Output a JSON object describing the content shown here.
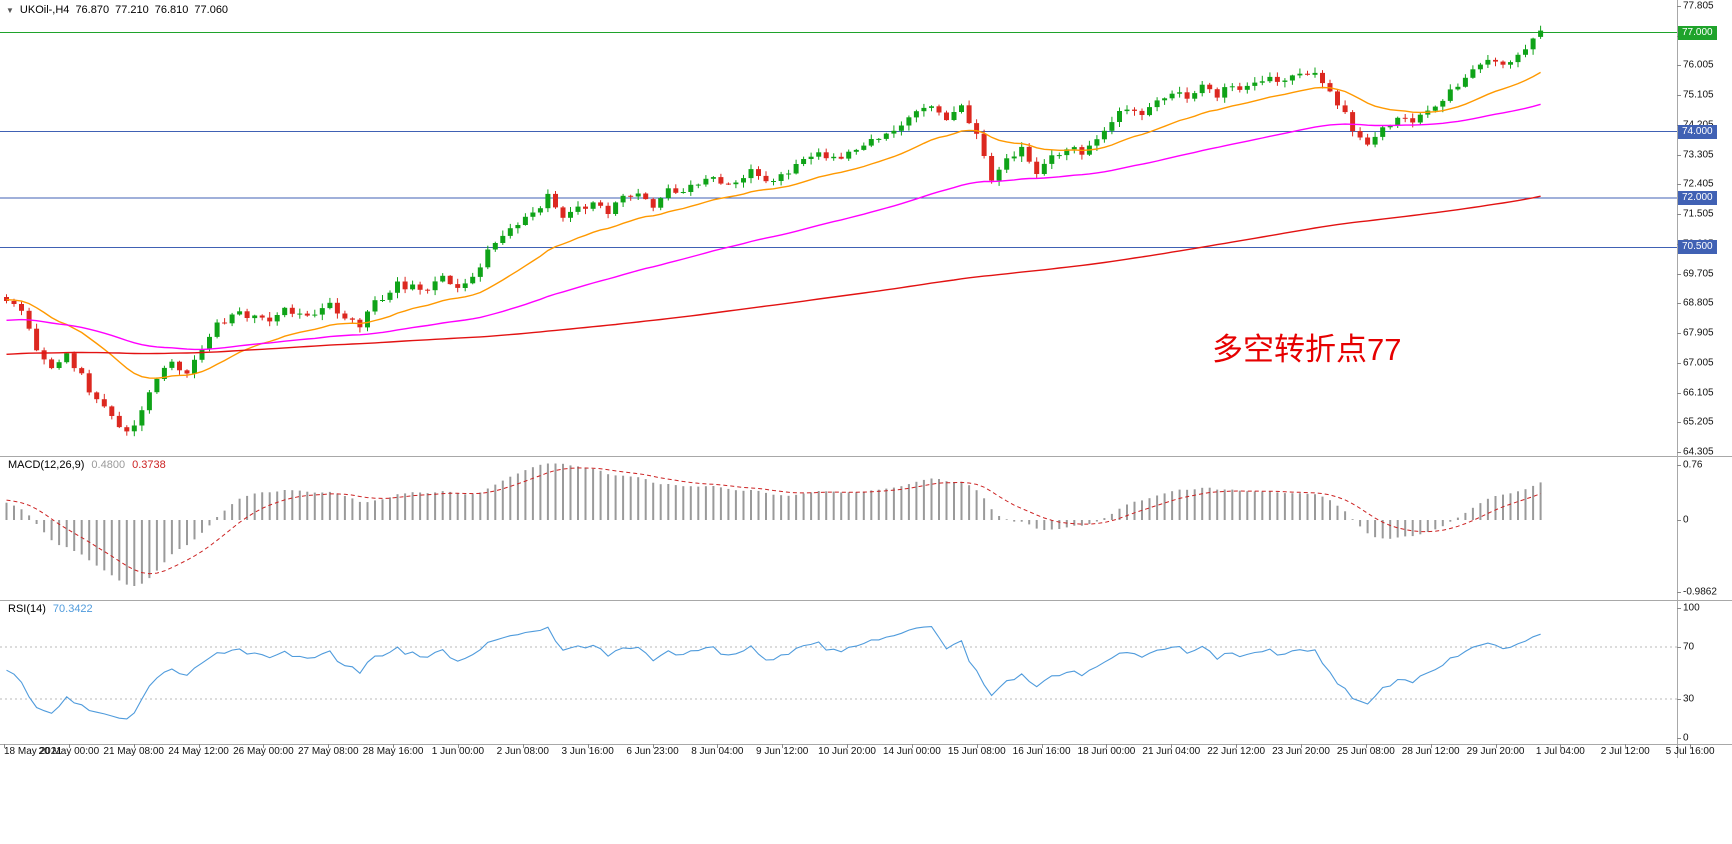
{
  "symbol_bar": {
    "marker_icon": "▼",
    "symbol": "UKOil-,H4",
    "open": "76.870",
    "high": "77.210",
    "low": "76.810",
    "close": "77.060"
  },
  "annotation": {
    "text": "多空转折点77",
    "color": "#e60000"
  },
  "time_axis": {
    "labels": [
      "18 May 2021",
      "20 May 00:00",
      "21 May 08:00",
      "24 May 12:00",
      "26 May 00:00",
      "27 May 08:00",
      "28 May 16:00",
      "1 Jun 00:00",
      "2 Jun 08:00",
      "3 Jun 16:00",
      "6 Jun 23:00",
      "8 Jun 04:00",
      "9 Jun 12:00",
      "10 Jun 20:00",
      "14 Jun 00:00",
      "15 Jun 08:00",
      "16 Jun 16:00",
      "18 Jun 00:00",
      "21 Jun 04:00",
      "22 Jun 12:00",
      "23 Jun 20:00",
      "25 Jun 08:00",
      "28 Jun 12:00",
      "29 Jun 20:00",
      "1 Jul 04:00",
      "2 Jul 12:00",
      "5 Jul 16:00"
    ]
  },
  "chart_data": [
    {
      "type": "candlestick",
      "symbol": "UKOil-",
      "timeframe": "H4",
      "bars_visible": 205,
      "last_bar": {
        "open": 76.87,
        "high": 77.21,
        "low": 76.81,
        "close": 77.06
      },
      "y_axis": {
        "min": 64.305,
        "max": 77.805,
        "tick_step": 0.9,
        "ticks": [
          "77.805",
          "76.905",
          "76.005",
          "75.105",
          "74.205",
          "73.305",
          "72.405",
          "71.505",
          "70.605",
          "69.705",
          "68.805",
          "67.905",
          "67.005",
          "66.105",
          "65.205",
          "64.305"
        ]
      },
      "horizontal_levels": [
        {
          "value": 77.0,
          "label": "77.000",
          "color": "#1fa32b",
          "tag_bg": "#1fa32b"
        },
        {
          "value": 74.0,
          "label": "74.000",
          "color": "#4061b4",
          "tag_bg": "#4061b4"
        },
        {
          "value": 72.0,
          "label": "72.000",
          "color": "#4061b4",
          "tag_bg": "#4061b4"
        },
        {
          "value": 70.5,
          "label": "70.500",
          "color": "#4061b4",
          "tag_bg": "#4061b4"
        }
      ],
      "up_color": "#0fa318",
      "down_color": "#dc2820",
      "moving_averages": [
        {
          "name": "ma-fast",
          "type": "ema",
          "period": 21,
          "color": "#ff9900"
        },
        {
          "name": "ma-medium",
          "type": "ema",
          "period": 72,
          "color": "#ff00ff"
        },
        {
          "name": "ma-slow",
          "type": "sma",
          "period": 200,
          "color": "#e21212"
        }
      ],
      "price_path_anchors": [
        [
          0,
          68.85
        ],
        [
          2,
          68.55
        ],
        [
          4,
          67.35
        ],
        [
          6,
          66.85
        ],
        [
          8,
          67.25
        ],
        [
          10,
          66.55
        ],
        [
          12,
          65.95
        ],
        [
          14,
          65.35
        ],
        [
          16,
          64.95
        ],
        [
          18,
          65.55
        ],
        [
          20,
          66.5
        ],
        [
          22,
          67.0
        ],
        [
          24,
          66.7
        ],
        [
          26,
          67.5
        ],
        [
          28,
          68.25
        ],
        [
          31,
          68.5
        ],
        [
          34,
          68.3
        ],
        [
          37,
          68.6
        ],
        [
          40,
          68.3
        ],
        [
          43,
          68.8
        ],
        [
          45,
          68.4
        ],
        [
          47,
          68.15
        ],
        [
          49,
          68.8
        ],
        [
          52,
          69.4
        ],
        [
          55,
          69.2
        ],
        [
          58,
          69.6
        ],
        [
          60,
          69.3
        ],
        [
          62,
          69.6
        ],
        [
          64,
          70.35
        ],
        [
          66,
          70.9
        ],
        [
          68,
          71.25
        ],
        [
          70,
          71.45
        ],
        [
          72,
          72.15
        ],
        [
          74,
          71.4
        ],
        [
          76,
          71.65
        ],
        [
          78,
          71.9
        ],
        [
          80,
          71.6
        ],
        [
          82,
          71.95
        ],
        [
          84,
          72.1
        ],
        [
          86,
          71.7
        ],
        [
          88,
          72.35
        ],
        [
          90,
          72.1
        ],
        [
          93,
          72.6
        ],
        [
          96,
          72.35
        ],
        [
          99,
          72.8
        ],
        [
          102,
          72.55
        ],
        [
          105,
          73.05
        ],
        [
          108,
          73.3
        ],
        [
          111,
          73.15
        ],
        [
          114,
          73.6
        ],
        [
          117,
          73.9
        ],
        [
          120,
          74.45
        ],
        [
          123,
          74.8
        ],
        [
          125,
          74.4
        ],
        [
          127,
          74.75
        ],
        [
          129,
          73.9
        ],
        [
          131,
          72.6
        ],
        [
          133,
          73.15
        ],
        [
          135,
          73.45
        ],
        [
          137,
          72.7
        ],
        [
          139,
          73.3
        ],
        [
          141,
          73.5
        ],
        [
          143,
          73.35
        ],
        [
          145,
          73.8
        ],
        [
          147,
          74.3
        ],
        [
          149,
          74.75
        ],
        [
          151,
          74.55
        ],
        [
          153,
          74.95
        ],
        [
          155,
          75.2
        ],
        [
          157,
          74.95
        ],
        [
          159,
          75.3
        ],
        [
          161,
          75.15
        ],
        [
          163,
          75.45
        ],
        [
          165,
          75.3
        ],
        [
          167,
          75.6
        ],
        [
          169,
          75.45
        ],
        [
          171,
          75.7
        ],
        [
          173,
          75.85
        ],
        [
          175,
          75.5
        ],
        [
          177,
          74.85
        ],
        [
          179,
          74.15
        ],
        [
          181,
          73.6
        ],
        [
          183,
          74.0
        ],
        [
          185,
          74.45
        ],
        [
          187,
          74.3
        ],
        [
          189,
          74.65
        ],
        [
          191,
          74.9
        ],
        [
          193,
          75.4
        ],
        [
          195,
          75.9
        ],
        [
          197,
          76.2
        ],
        [
          199,
          76.0
        ],
        [
          201,
          76.3
        ],
        [
          202,
          76.5
        ],
        [
          203,
          76.82
        ],
        [
          204,
          77.06
        ]
      ]
    },
    {
      "type": "macd",
      "label": "MACD(12,26,9)",
      "macd_value": "0.4800",
      "signal_value": "0.3738",
      "fast": 12,
      "slow": 26,
      "signal": 9,
      "range": [
        -1.02,
        0.8
      ],
      "y_ticks": [
        {
          "v": 0.76,
          "label": "0.76"
        },
        {
          "v": 0,
          "label": "0"
        },
        {
          "v": -0.9862,
          "label": "-0.9862"
        }
      ],
      "histogram_color": "#9a9a9a",
      "signal_color": "#cc2222"
    },
    {
      "type": "rsi",
      "label": "RSI(14)",
      "value": "70.3422",
      "period": 14,
      "levels": [
        70,
        30
      ],
      "range": [
        0,
        100
      ],
      "y_ticks": [
        {
          "v": 100,
          "label": "100"
        },
        {
          "v": 70,
          "label": "70"
        },
        {
          "v": 30,
          "label": "30"
        },
        {
          "v": 0,
          "label": "0"
        }
      ],
      "line_color": "#4f9bdc"
    }
  ]
}
